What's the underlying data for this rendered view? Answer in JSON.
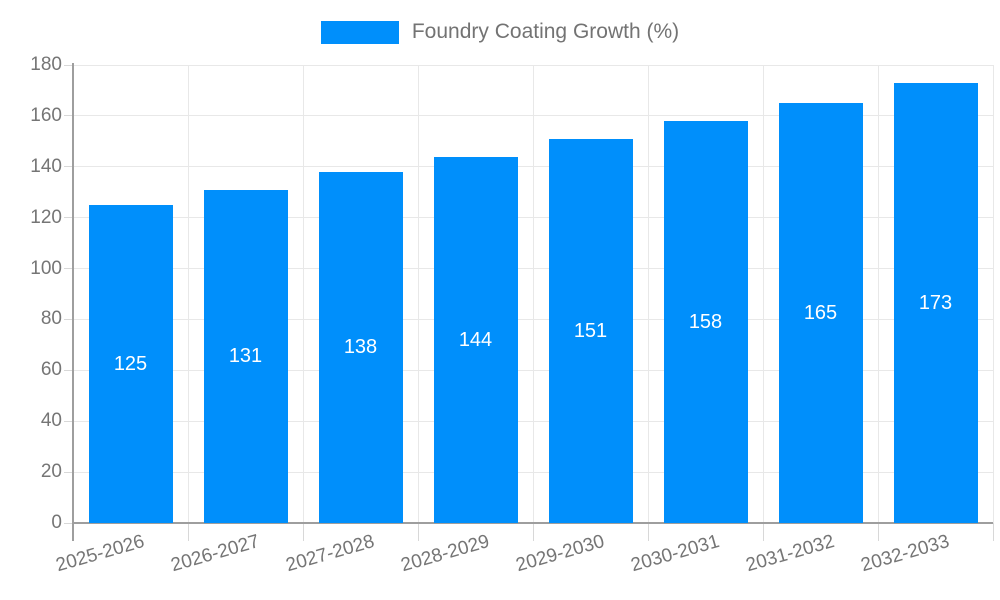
{
  "legend": {
    "label": "Foundry Coating Growth (%)"
  },
  "chart_data": {
    "type": "bar",
    "title": "Foundry Coating Growth (%)",
    "series_name": "Foundry Coating Growth (%)",
    "categories": [
      "2025-2026",
      "2026-2027",
      "2027-2028",
      "2028-2029",
      "2029-2030",
      "2030-2031",
      "2031-2032",
      "2032-2033"
    ],
    "values": [
      125,
      131,
      138,
      144,
      151,
      158,
      165,
      173
    ],
    "value_labels": [
      "125",
      "131",
      "138",
      "144",
      "151",
      "158",
      "165",
      "173"
    ],
    "xlabel": "",
    "ylabel": "",
    "ylim": [
      0,
      180
    ],
    "ytick_step": 20,
    "ytick_labels": [
      "0",
      "20",
      "40",
      "60",
      "80",
      "100",
      "120",
      "140",
      "160",
      "180"
    ],
    "grid": true,
    "legend_position": "top",
    "colors": {
      "bar": "#008FFB",
      "grid_line": "#e8e8e8",
      "axis_line": "#9e9e9e",
      "tick_line": "#d8d8d8",
      "tick_label": "#757575",
      "legend_text": "#737373",
      "value_label": "#ffffff",
      "background": "#ffffff"
    }
  }
}
